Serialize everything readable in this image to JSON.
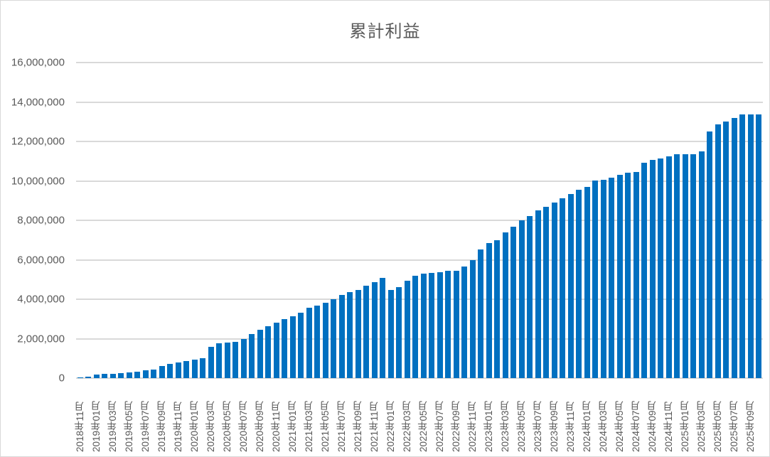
{
  "chart_data": {
    "type": "bar",
    "title": "累計利益",
    "xlabel": "",
    "ylabel": "",
    "ylim": [
      0,
      16000000
    ],
    "yticks": [
      0,
      2000000,
      4000000,
      6000000,
      8000000,
      10000000,
      12000000,
      14000000,
      16000000
    ],
    "ytick_labels": [
      "0",
      "2,000,000",
      "4,000,000",
      "6,000,000",
      "8,000,000",
      "10,000,000",
      "12,000,000",
      "14,000,000",
      "16,000,000"
    ],
    "grid": true,
    "legend": "none",
    "bar_color": "#0070c0",
    "categories": [
      "2018年11月",
      "2018年12月",
      "2019年01月",
      "2019年02月",
      "2019年03月",
      "2019年04月",
      "2019年05月",
      "2019年06月",
      "2019年07月",
      "2019年08月",
      "2019年09月",
      "2019年10月",
      "2019年11月",
      "2019年12月",
      "2020年01月",
      "2020年02月",
      "2020年03月",
      "2020年04月",
      "2020年05月",
      "2020年06月",
      "2020年07月",
      "2020年08月",
      "2020年09月",
      "2020年10月",
      "2020年11月",
      "2020年12月",
      "2021年01月",
      "2021年02月",
      "2021年03月",
      "2021年04月",
      "2021年05月",
      "2021年06月",
      "2021年07月",
      "2021年08月",
      "2021年09月",
      "2021年10月",
      "2021年11月",
      "2021年12月",
      "2022年01月",
      "2022年02月",
      "2022年03月",
      "2022年04月",
      "2022年05月",
      "2022年06月",
      "2022年07月",
      "2022年08月",
      "2022年09月",
      "2022年10月",
      "2022年11月",
      "2022年12月",
      "2023年01月",
      "2023年02月",
      "2023年03月",
      "2023年04月",
      "2023年05月",
      "2023年06月",
      "2023年07月",
      "2023年08月",
      "2023年09月",
      "2023年10月",
      "2023年11月",
      "2023年12月",
      "2024年01月",
      "2024年02月",
      "2024年03月",
      "2024年04月",
      "2024年05月",
      "2024年06月",
      "2024年07月",
      "2024年08月",
      "2024年09月",
      "2024年10月",
      "2024年11月",
      "2024年12月",
      "2025年01月",
      "2025年02月",
      "2025年03月",
      "2025年04月",
      "2025年05月",
      "2025年06月",
      "2025年07月",
      "2025年08月",
      "2025年09月",
      "2025年10月"
    ],
    "values": [
      50000,
      80000,
      180000,
      200000,
      200000,
      250000,
      300000,
      320000,
      380000,
      450000,
      600000,
      720000,
      800000,
      850000,
      920000,
      1000000,
      1600000,
      1750000,
      1800000,
      1850000,
      1980000,
      2220000,
      2450000,
      2620000,
      2800000,
      3000000,
      3150000,
      3320000,
      3580000,
      3680000,
      3820000,
      4000000,
      4200000,
      4350000,
      4480000,
      4680000,
      4850000,
      5080000,
      4480000,
      4620000,
      4950000,
      5200000,
      5300000,
      5330000,
      5360000,
      5430000,
      5430000,
      5650000,
      6000000,
      6520000,
      6850000,
      7000000,
      7400000,
      7680000,
      8000000,
      8200000,
      8500000,
      8700000,
      8900000,
      9100000,
      9350000,
      9550000,
      9700000,
      10020000,
      10050000,
      10180000,
      10320000,
      10420000,
      10460000,
      10920000,
      11050000,
      11150000,
      11250000,
      11350000,
      11350000,
      11350000,
      11480000,
      12500000,
      12850000,
      13000000,
      13200000,
      13380000,
      13380000,
      13380000
    ],
    "visible_xtick_labels": [
      "2018年11月",
      "2019年01月",
      "2019年03月",
      "2019年05月",
      "2019年07月",
      "2019年09月",
      "2019年11月",
      "2020年01月",
      "2020年03月",
      "2020年05月",
      "2020年07月",
      "2020年09月",
      "2020年11月",
      "2021年01月",
      "2021年03月",
      "2021年05月",
      "2021年07月",
      "2021年09月",
      "2021年11月",
      "2022年01月",
      "2022年03月",
      "2022年05月",
      "2022年07月",
      "2022年09月",
      "2022年11月",
      "2023年01月",
      "2023年03月",
      "2023年05月",
      "2023年07月",
      "2023年09月",
      "2023年11月",
      "2024年01月",
      "2024年03月",
      "2024年05月",
      "2024年07月",
      "2024年09月",
      "2024年11月",
      "2025年01月",
      "2025年03月",
      "2025年05月",
      "2025年07月",
      "2025年09月"
    ]
  }
}
